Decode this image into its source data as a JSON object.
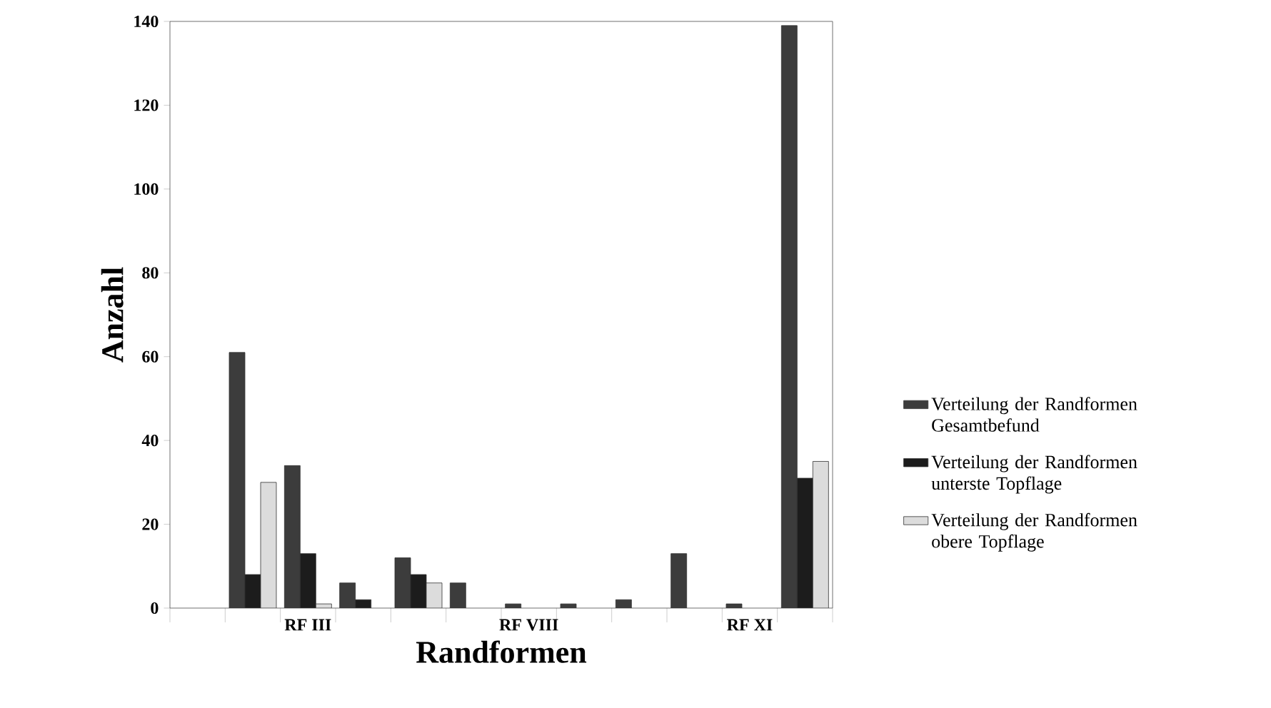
{
  "chart_data": {
    "type": "bar",
    "xlabel": "Randformen",
    "ylabel": "Anzahl",
    "categories": [
      null,
      null,
      "RF III",
      null,
      null,
      null,
      "RF VIII",
      null,
      null,
      null,
      "RF XI",
      null
    ],
    "series": [
      {
        "name": "Verteilung der Randformen Gesamtbefund",
        "color": "#3c3c3c",
        "values": [
          null,
          61,
          34,
          6,
          12,
          6,
          1,
          1,
          2,
          13,
          1,
          139
        ]
      },
      {
        "name": "Verteilung der Randformen unterste Topflage",
        "color": "#1c1c1c",
        "values": [
          null,
          8,
          13,
          2,
          8,
          null,
          null,
          null,
          null,
          null,
          null,
          31
        ]
      },
      {
        "name": "Verteilung der Randformen obere Topflage",
        "color": "#dcdcdc",
        "values": [
          null,
          30,
          1,
          null,
          6,
          null,
          null,
          null,
          null,
          null,
          null,
          35
        ]
      }
    ],
    "ylim": [
      0,
      140
    ],
    "yticks": [
      0,
      20,
      40,
      60,
      80,
      100,
      120,
      140
    ],
    "legend": "right"
  }
}
